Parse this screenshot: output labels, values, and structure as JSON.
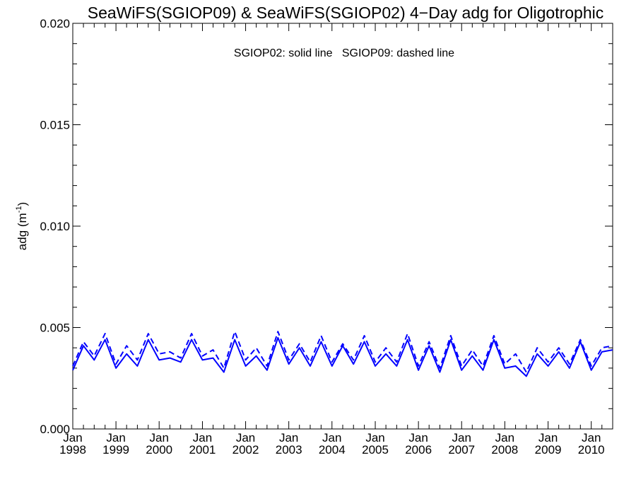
{
  "chart_data": {
    "type": "line",
    "title": "SeaWiFS(SGIOP09) & SeaWiFS(SGIOP02) 4−Day adg for Oligotrophic",
    "annotation": "SGIOP02: solid line   SGIOP09: dashed line",
    "ylabel": "adg (m",
    "ylabel_sup": "-1",
    "ylabel_close": ")",
    "ylim": [
      0.0,
      0.02
    ],
    "yticks": [
      "0.000",
      "0.005",
      "0.010",
      "0.015",
      "0.020"
    ],
    "xlim": [
      "1998-01-01",
      "2010-07-01"
    ],
    "xticks": [
      {
        "month": "Jan",
        "year": "1998"
      },
      {
        "month": "Jan",
        "year": "1999"
      },
      {
        "month": "Jan",
        "year": "2000"
      },
      {
        "month": "Jan",
        "year": "2001"
      },
      {
        "month": "Jan",
        "year": "2002"
      },
      {
        "month": "Jan",
        "year": "2003"
      },
      {
        "month": "Jan",
        "year": "2004"
      },
      {
        "month": "Jan",
        "year": "2005"
      },
      {
        "month": "Jan",
        "year": "2006"
      },
      {
        "month": "Jan",
        "year": "2007"
      },
      {
        "month": "Jan",
        "year": "2008"
      },
      {
        "month": "Jan",
        "year": "2009"
      },
      {
        "month": "Jan",
        "year": "2010"
      }
    ],
    "series_color": "#0000ff",
    "series": [
      {
        "style": "solid",
        "x": [
          "1998-01-01",
          "1998-04-01",
          "1998-07-01",
          "1998-10-01",
          "1999-01-01",
          "1999-04-01",
          "1999-07-01",
          "1999-10-01",
          "2000-01-01",
          "2000-04-01",
          "2000-07-01",
          "2000-10-01",
          "2001-01-01",
          "2001-04-01",
          "2001-07-01",
          "2001-10-01",
          "2002-01-01",
          "2002-04-01",
          "2002-07-01",
          "2002-10-01",
          "2003-01-01",
          "2003-04-01",
          "2003-07-01",
          "2003-10-01",
          "2004-01-01",
          "2004-04-01",
          "2004-07-01",
          "2004-10-01",
          "2005-01-01",
          "2005-04-01",
          "2005-07-01",
          "2005-10-01",
          "2006-01-01",
          "2006-04-01",
          "2006-07-01",
          "2006-10-01",
          "2007-01-01",
          "2007-04-01",
          "2007-07-01",
          "2007-10-01",
          "2008-01-01",
          "2008-04-01",
          "2008-07-01",
          "2008-10-01",
          "2009-01-01",
          "2009-04-01",
          "2009-07-01",
          "2009-10-01",
          "2010-01-01",
          "2010-04-01",
          "2010-07-01"
        ],
        "y": [
          0.0029,
          0.0041,
          0.0034,
          0.0044,
          0.003,
          0.0037,
          0.0031,
          0.0044,
          0.0034,
          0.0035,
          0.0033,
          0.0044,
          0.0034,
          0.0035,
          0.0028,
          0.0044,
          0.0031,
          0.0036,
          0.0029,
          0.0045,
          0.0032,
          0.004,
          0.0031,
          0.0043,
          0.0031,
          0.0041,
          0.0032,
          0.0043,
          0.0031,
          0.0037,
          0.0031,
          0.0044,
          0.0029,
          0.0041,
          0.0028,
          0.0044,
          0.0029,
          0.0036,
          0.0029,
          0.0044,
          0.003,
          0.0031,
          0.0026,
          0.0037,
          0.0031,
          0.0038,
          0.003,
          0.0043,
          0.0029,
          0.0038,
          0.0039
        ]
      },
      {
        "style": "dashed",
        "x": [
          "1998-01-01",
          "1998-04-01",
          "1998-07-01",
          "1998-10-01",
          "1999-01-01",
          "1999-04-01",
          "1999-07-01",
          "1999-10-01",
          "2000-01-01",
          "2000-04-01",
          "2000-07-01",
          "2000-10-01",
          "2001-01-01",
          "2001-04-01",
          "2001-07-01",
          "2001-10-01",
          "2002-01-01",
          "2002-04-01",
          "2002-07-01",
          "2002-10-01",
          "2003-01-01",
          "2003-04-01",
          "2003-07-01",
          "2003-10-01",
          "2004-01-01",
          "2004-04-01",
          "2004-07-01",
          "2004-10-01",
          "2005-01-01",
          "2005-04-01",
          "2005-07-01",
          "2005-10-01",
          "2006-01-01",
          "2006-04-01",
          "2006-07-01",
          "2006-10-01",
          "2007-01-01",
          "2007-04-01",
          "2007-07-01",
          "2007-10-01",
          "2008-01-01",
          "2008-04-01",
          "2008-07-01",
          "2008-10-01",
          "2009-01-01",
          "2009-04-01",
          "2009-07-01",
          "2009-10-01",
          "2010-01-01",
          "2010-04-01",
          "2010-07-01"
        ],
        "y": [
          0.0031,
          0.0043,
          0.0036,
          0.0047,
          0.0032,
          0.0041,
          0.0034,
          0.0047,
          0.0037,
          0.0038,
          0.0035,
          0.0047,
          0.0036,
          0.0039,
          0.003,
          0.0048,
          0.0034,
          0.004,
          0.0031,
          0.0048,
          0.0034,
          0.0042,
          0.0033,
          0.0046,
          0.0033,
          0.0042,
          0.0034,
          0.0046,
          0.0033,
          0.004,
          0.0033,
          0.0047,
          0.0031,
          0.0043,
          0.003,
          0.0046,
          0.0031,
          0.0039,
          0.0031,
          0.0046,
          0.0032,
          0.0037,
          0.0028,
          0.004,
          0.0033,
          0.004,
          0.0032,
          0.0044,
          0.0031,
          0.004,
          0.0041
        ]
      }
    ]
  }
}
